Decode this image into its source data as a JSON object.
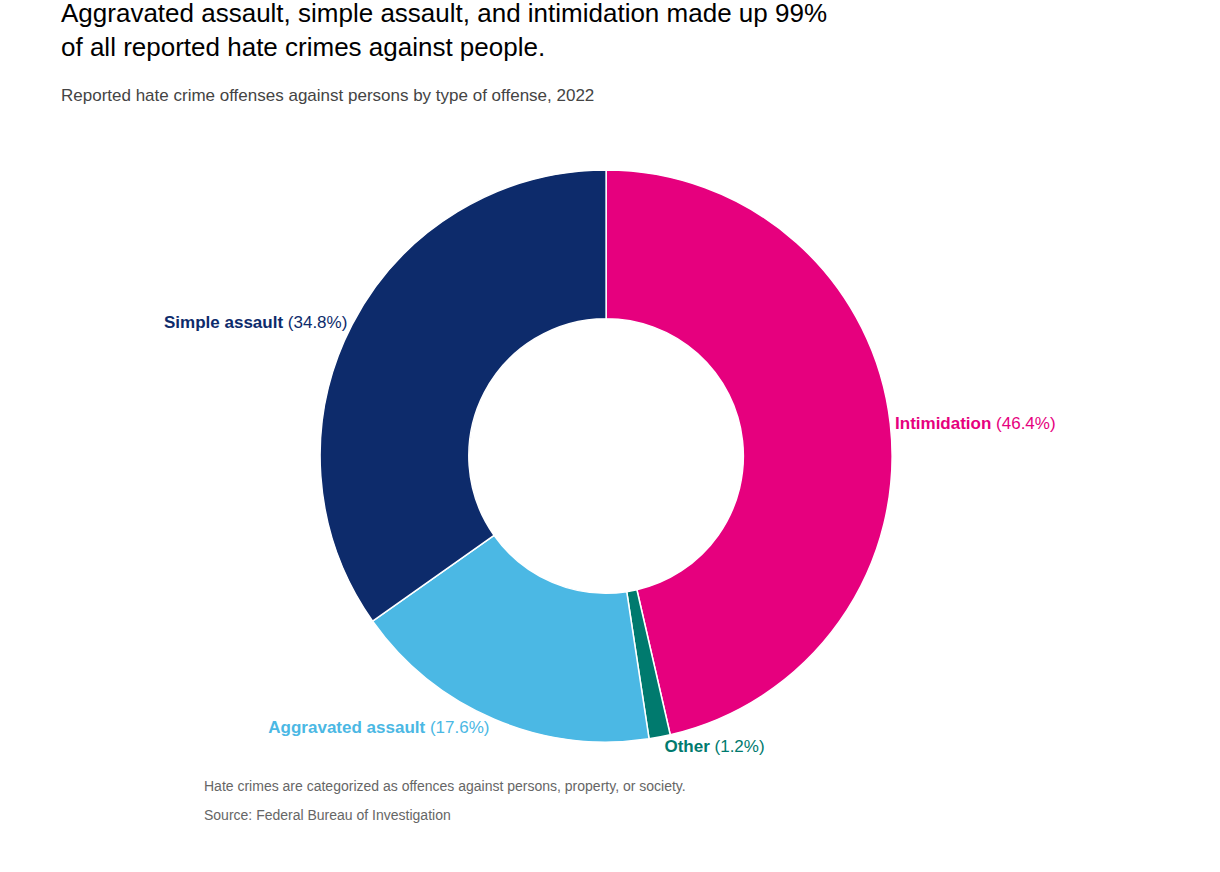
{
  "chart_data": {
    "type": "pie",
    "title": "Aggravated assault, simple assault, and intimidation made up 99%\nof all reported hate crimes against people.",
    "subtitle": "Reported hate crime offenses against persons by type of offense, 2022",
    "categories": [
      "Intimidation",
      "Other",
      "Aggravated assault",
      "Simple assault"
    ],
    "values": [
      46.4,
      1.2,
      17.6,
      34.8
    ],
    "value_labels": [
      "(46.4%)",
      "(1.2%)",
      "(17.6%)",
      "(34.8%)"
    ],
    "colors": [
      "#E6007E",
      "#007A6E",
      "#4BB8E4",
      "#0D2B6B"
    ],
    "annotations": [
      "Hate crimes are categorized as offences against persons, property, or society.",
      "Source: Federal Bureau of Investigation"
    ]
  }
}
